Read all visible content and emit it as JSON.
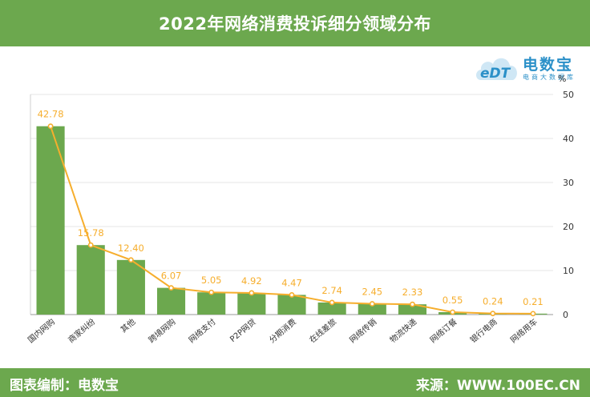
{
  "header": {
    "title": "2022年网络消费投诉细分领域分布"
  },
  "logo": {
    "brand": "电数宝",
    "sub": "电商大数据库",
    "mark": "eDT"
  },
  "colors": {
    "bar": "#6ca84e",
    "line": "#f6ae2d",
    "label": "#f6ae2d",
    "axis": "#333333",
    "grid": "#e6e6e6"
  },
  "chart_data": {
    "type": "bar",
    "title": "2022年网络消费投诉细分领域分布",
    "ylabel": "%",
    "ylim": [
      0,
      50
    ],
    "yticks": [
      0,
      10,
      20,
      30,
      40,
      50
    ],
    "y_axis_side": "right",
    "categories": [
      "国内网购",
      "商家纠纷",
      "其他",
      "跨境网购",
      "网络支付",
      "P2P网贷",
      "分期消费",
      "在线差旅",
      "网络传销",
      "物流快递",
      "网络订餐",
      "银行电商",
      "网络用车"
    ],
    "values": [
      42.78,
      15.78,
      12.4,
      6.07,
      5.05,
      4.92,
      4.47,
      2.74,
      2.45,
      2.33,
      0.55,
      0.24,
      0.21
    ],
    "value_labels": [
      "42.78",
      "15.78",
      "12.40",
      "6.07",
      "5.05",
      "4.92",
      "4.47",
      "2.74",
      "2.45",
      "2.33",
      "0.55",
      "0.24",
      "0.21"
    ],
    "overlay_line": true,
    "grid": true
  },
  "footer": {
    "left": "图表编制：电数宝",
    "right": "来源：WWW.100EC.CN"
  }
}
